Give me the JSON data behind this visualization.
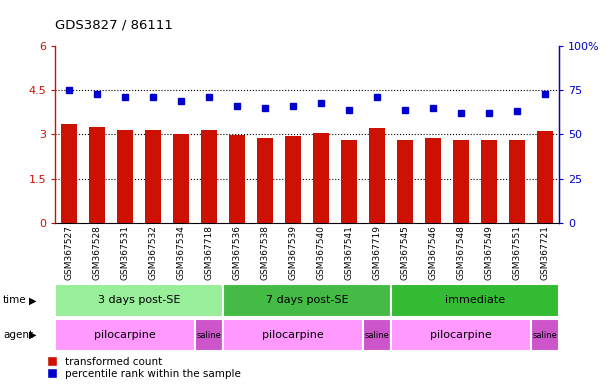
{
  "title": "GDS3827 / 86111",
  "samples": [
    "GSM367527",
    "GSM367528",
    "GSM367531",
    "GSM367532",
    "GSM367534",
    "GSM367718",
    "GSM367536",
    "GSM367538",
    "GSM367539",
    "GSM367540",
    "GSM367541",
    "GSM367719",
    "GSM367545",
    "GSM367546",
    "GSM367548",
    "GSM367549",
    "GSM367551",
    "GSM367721"
  ],
  "red_values": [
    3.35,
    3.25,
    3.15,
    3.15,
    3.02,
    3.15,
    2.98,
    2.88,
    2.94,
    3.05,
    2.82,
    3.22,
    2.82,
    2.87,
    2.82,
    2.82,
    2.82,
    3.13
  ],
  "blue_values": [
    75,
    73,
    71,
    71,
    69,
    71,
    66,
    65,
    66,
    68,
    64,
    71,
    64,
    65,
    62,
    62,
    63,
    73
  ],
  "ylim_left": [
    0,
    6
  ],
  "ylim_right": [
    0,
    100
  ],
  "yticks_left": [
    0,
    1.5,
    3.0,
    4.5,
    6
  ],
  "yticks_right": [
    0,
    25,
    50,
    75,
    100
  ],
  "ytick_labels_left": [
    "0",
    "1.5",
    "3",
    "4.5",
    "6"
  ],
  "ytick_labels_right": [
    "0",
    "25",
    "50",
    "75",
    "100%"
  ],
  "bar_color": "#cc1100",
  "dot_color": "#0000cc",
  "time_groups": [
    {
      "label": "3 days post-SE",
      "start": 0,
      "end": 6,
      "color": "#99ee99"
    },
    {
      "label": "7 days post-SE",
      "start": 6,
      "end": 12,
      "color": "#44bb44"
    },
    {
      "label": "immediate",
      "start": 12,
      "end": 18,
      "color": "#33bb33"
    }
  ],
  "agent_groups": [
    {
      "label": "pilocarpine",
      "start": 0,
      "end": 5,
      "color": "#ff99ff"
    },
    {
      "label": "saline",
      "start": 5,
      "end": 6,
      "color": "#cc55cc"
    },
    {
      "label": "pilocarpine",
      "start": 6,
      "end": 11,
      "color": "#ff99ff"
    },
    {
      "label": "saline",
      "start": 11,
      "end": 12,
      "color": "#cc55cc"
    },
    {
      "label": "pilocarpine",
      "start": 12,
      "end": 17,
      "color": "#ff99ff"
    },
    {
      "label": "saline",
      "start": 17,
      "end": 18,
      "color": "#cc55cc"
    }
  ],
  "legend_red": "transformed count",
  "legend_blue": "percentile rank within the sample",
  "grid_dotted_values": [
    1.5,
    3.0,
    4.5
  ]
}
